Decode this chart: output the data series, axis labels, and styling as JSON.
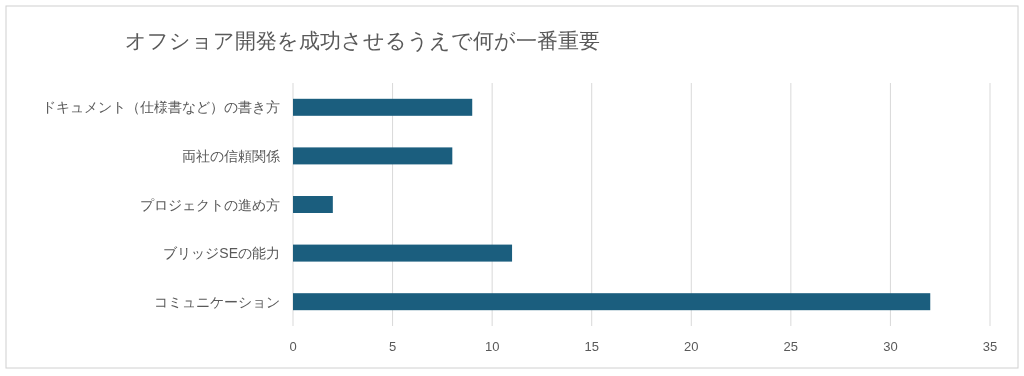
{
  "chart_data": {
    "type": "bar",
    "orientation": "horizontal",
    "title": "オフショア開発を成功させるうえで何が一番重要",
    "categories": [
      "ドキュメント（仕様書など）の書き方",
      "両社の信頼関係",
      "プロジェクトの進め方",
      "ブリッジSEの能力",
      "コミュニケーション"
    ],
    "values": [
      9,
      8,
      2,
      11,
      32
    ],
    "color": "#1b5e7e",
    "xlim": [
      0,
      35
    ],
    "xticks": [
      0,
      5,
      10,
      15,
      20,
      25,
      30,
      35
    ],
    "grid": "x"
  }
}
